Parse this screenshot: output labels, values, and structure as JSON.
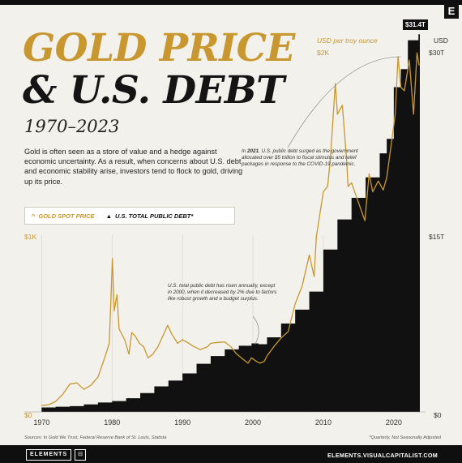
{
  "title_line1": "GOLD PRICE",
  "title_line2": "& U.S. DEBT",
  "subtitle": "1970–2023",
  "intro": "Gold is often seen as a store of value and a hedge against economic uncertainty. As a result, when concerns about U.S. debt and economic stability arise, investors tend to flock to gold, driving up its price.",
  "legend": {
    "gold": "GOLD SPOT PRICE",
    "debt": "U.S. TOTAL PUBLIC DEBT*",
    "gold_symbol": "^",
    "debt_symbol": "▲"
  },
  "annotations": {
    "covid": "In 2021, U.S. public debt surged as the government allocated over $5 trillion to fiscal stimulus and relief packages in response to the COVID-19 pandemic.",
    "covid_bold": "2021",
    "surplus": "U.S. total public debt has risen annually, except in 2000, when it decreased by 2% due to factors like robust growth and a budget surplus."
  },
  "left_axis": {
    "unit": "USD per troy ounce",
    "labels": [
      "$0",
      "$1K",
      "$2K"
    ]
  },
  "right_axis": {
    "unit": "USD",
    "labels": [
      "$0",
      "$15T",
      "$30T"
    ]
  },
  "max_label": "$31.4T",
  "footer": {
    "sources": "Sources: In Gold We Trust, Federal Reserve Bank of St. Louis, Statista",
    "note": "*Quarterly, Not Seasonally Adjusted",
    "brand": "ELEMENTS",
    "site": "ELEMENTS.VISUALCAPITALIST.COM",
    "e_logo": "E"
  },
  "colors": {
    "gold": "#c8972f",
    "debt": "#111111",
    "background": "#f3f1ec"
  },
  "chart_data": {
    "type": "area",
    "x_ticks": [
      "1970",
      "1980",
      "1990",
      "2000",
      "2010",
      "2020"
    ],
    "xlim": [
      1969.5,
      2023.7
    ],
    "series": [
      {
        "name": "GOLD SPOT PRICE",
        "axis": "left",
        "unit": "USD per troy ounce",
        "ylim": [
          0,
          2000
        ],
        "points": [
          [
            1970,
            35
          ],
          [
            1971,
            40
          ],
          [
            1972,
            58
          ],
          [
            1973,
            97
          ],
          [
            1974,
            154
          ],
          [
            1975,
            161
          ],
          [
            1976,
            125
          ],
          [
            1977,
            148
          ],
          [
            1978,
            193
          ],
          [
            1979,
            306
          ],
          [
            1979.6,
            380
          ],
          [
            1980.05,
            850
          ],
          [
            1980.3,
            560
          ],
          [
            1980.7,
            650
          ],
          [
            1981,
            460
          ],
          [
            1981.8,
            400
          ],
          [
            1982.4,
            320
          ],
          [
            1982.8,
            440
          ],
          [
            1983.3,
            420
          ],
          [
            1983.9,
            380
          ],
          [
            1984.5,
            360
          ],
          [
            1985.1,
            300
          ],
          [
            1985.8,
            320
          ],
          [
            1986.5,
            360
          ],
          [
            1987.2,
            420
          ],
          [
            1987.9,
            480
          ],
          [
            1988.5,
            430
          ],
          [
            1989.3,
            380
          ],
          [
            1990,
            400
          ],
          [
            1990.7,
            385
          ],
          [
            1991.5,
            365
          ],
          [
            1992.5,
            345
          ],
          [
            1993.5,
            360
          ],
          [
            1994,
            380
          ],
          [
            1995,
            385
          ],
          [
            1996,
            388
          ],
          [
            1996.9,
            360
          ],
          [
            1997.6,
            325
          ],
          [
            1998.5,
            295
          ],
          [
            1999.3,
            270
          ],
          [
            1999.8,
            300
          ],
          [
            2000.5,
            280
          ],
          [
            2001,
            270
          ],
          [
            2001.6,
            280
          ],
          [
            2002,
            310
          ],
          [
            2003,
            363
          ],
          [
            2004,
            410
          ],
          [
            2005,
            445
          ],
          [
            2006,
            600
          ],
          [
            2007,
            700
          ],
          [
            2008,
            870
          ],
          [
            2008.7,
            750
          ],
          [
            2009,
            970
          ],
          [
            2010,
            1220
          ],
          [
            2010.6,
            1250
          ],
          [
            2011,
            1400
          ],
          [
            2011.7,
            1820
          ],
          [
            2012,
            1650
          ],
          [
            2012.7,
            1700
          ],
          [
            2013.3,
            1400
          ],
          [
            2013.5,
            1250
          ],
          [
            2014,
            1270
          ],
          [
            2014.8,
            1180
          ],
          [
            2015.9,
            1060
          ],
          [
            2016.5,
            1320
          ],
          [
            2017,
            1220
          ],
          [
            2017.8,
            1280
          ],
          [
            2018.5,
            1230
          ],
          [
            2019,
            1300
          ],
          [
            2019.7,
            1500
          ],
          [
            2020.2,
            1650
          ],
          [
            2020.6,
            1970
          ],
          [
            2021,
            1800
          ],
          [
            2021.5,
            1780
          ],
          [
            2022.2,
            1950
          ],
          [
            2022.8,
            1650
          ],
          [
            2023.3,
            1990
          ],
          [
            2023.6,
            1920
          ]
        ]
      },
      {
        "name": "U.S. TOTAL PUBLIC DEBT*",
        "axis": "right",
        "unit": "USD",
        "ylim": [
          0,
          30000
        ],
        "points": [
          [
            1970,
            370
          ],
          [
            1972,
            430
          ],
          [
            1974,
            480
          ],
          [
            1976,
            620
          ],
          [
            1978,
            780
          ],
          [
            1980,
            900
          ],
          [
            1982,
            1140
          ],
          [
            1984,
            1570
          ],
          [
            1986,
            2120
          ],
          [
            1988,
            2600
          ],
          [
            1990,
            3200
          ],
          [
            1992,
            4000
          ],
          [
            1994,
            4640
          ],
          [
            1996,
            5200
          ],
          [
            1998,
            5500
          ],
          [
            1999.8,
            5700
          ],
          [
            2000.8,
            5630
          ],
          [
            2002,
            6200
          ],
          [
            2004,
            7350
          ],
          [
            2006,
            8500
          ],
          [
            2008,
            10000
          ],
          [
            2010,
            13500
          ],
          [
            2012,
            16000
          ],
          [
            2014,
            17800
          ],
          [
            2016,
            19500
          ],
          [
            2018,
            21500
          ],
          [
            2019,
            22700
          ],
          [
            2020,
            27000
          ],
          [
            2021,
            28500
          ],
          [
            2022,
            30900
          ],
          [
            2023.5,
            31400
          ]
        ]
      }
    ]
  }
}
